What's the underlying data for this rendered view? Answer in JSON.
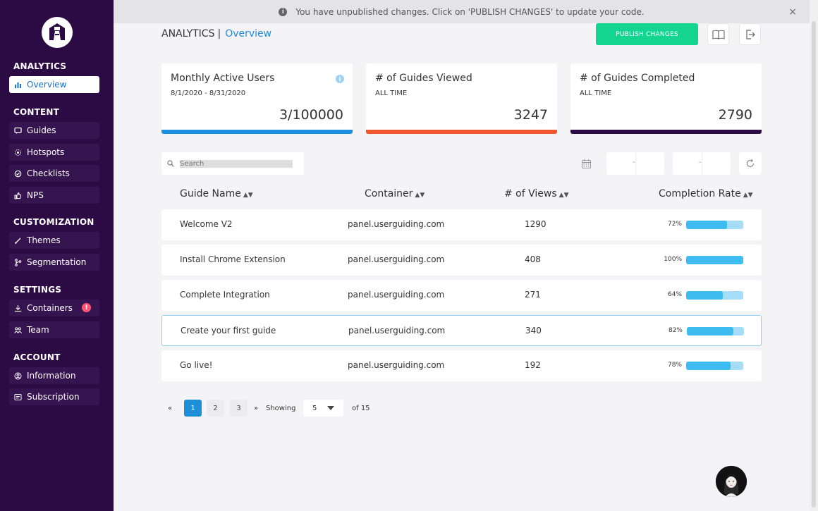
{
  "sidebar": {
    "sections": {
      "analytics": "ANALYTICS",
      "content": "CONTENT",
      "customization": "CUSTOMIZATION",
      "settings": "SETTINGS",
      "account": "ACCOUNT"
    },
    "items": {
      "overview": "Overview",
      "guides": "Guides",
      "hotspots": "Hotspots",
      "checklists": "Checklists",
      "nps": "NPS",
      "themes": "Themes",
      "segmentation": "Segmentation",
      "containers": "Containers",
      "team": "Team",
      "information": "Information",
      "subscription": "Subscription"
    },
    "containers_badge": "!"
  },
  "banner": {
    "message": "You have unpublished changes. Click on 'PUBLISH CHANGES' to update your code.",
    "close": "×"
  },
  "header": {
    "section": "ANALYTICS",
    "separator": "|",
    "page": "Overview",
    "publish_label": "PUBLISH CHANGES"
  },
  "cards": [
    {
      "title": "Monthly Active Users",
      "sub": "8/1/2020 - 8/31/2020",
      "value": "3/100000",
      "color": "#1a8fe0"
    },
    {
      "title": "# of Guides Viewed",
      "sub": "ALL TIME",
      "value": "3247",
      "color": "#f0572a"
    },
    {
      "title": "# of Guides Completed",
      "sub": "ALL TIME",
      "value": "2790",
      "color": "#2c0a44"
    }
  ],
  "filters": {
    "search_placeholder": "Search",
    "date_dash": "-"
  },
  "table": {
    "headers": {
      "name": "Guide Name",
      "container": "Container",
      "views": "# of Views",
      "completion": "Completion Rate"
    },
    "rows": [
      {
        "name": "Welcome V2",
        "container": "panel.userguiding.com",
        "views": "1290",
        "pct_label": "72%",
        "rate": 72
      },
      {
        "name": "Install Chrome Extension",
        "container": "panel.userguiding.com",
        "views": "408",
        "pct_label": "100%",
        "rate": 100
      },
      {
        "name": "Complete Integration",
        "container": "panel.userguiding.com",
        "views": "271",
        "pct_label": "64%",
        "rate": 64
      },
      {
        "name": "Create your first guide",
        "container": "panel.userguiding.com",
        "views": "340",
        "pct_label": "82%",
        "rate": 82
      },
      {
        "name": "Go live!",
        "container": "panel.userguiding.com",
        "views": "192",
        "pct_label": "78%",
        "rate": 78
      }
    ]
  },
  "pagination": {
    "prev": "«",
    "next": "»",
    "pages": [
      "1",
      "2",
      "3"
    ],
    "showing": "Showing",
    "page_size": "5",
    "total": "of 15"
  },
  "colors": {
    "sidebar": "#2c0a44",
    "accent": "#1f8ad6",
    "publish": "#13d590",
    "progress": "#3cbcf0"
  }
}
